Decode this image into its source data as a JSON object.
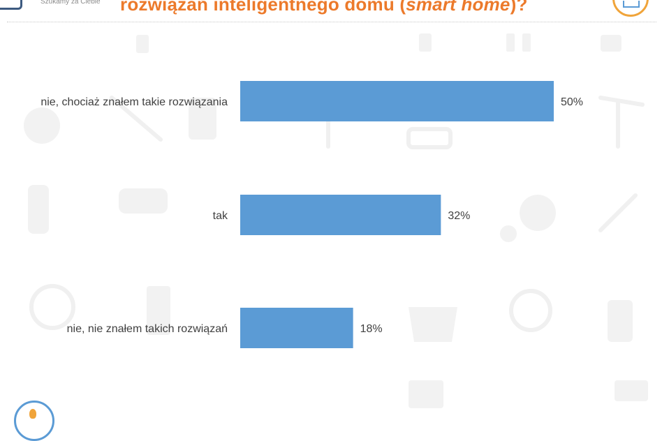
{
  "header": {
    "tagline": "Szukamy za Ciebie",
    "title_main": "rozwiązań inteligentnego domu (",
    "title_em": "smart home",
    "title_end": ")?"
  },
  "icons": {
    "logo": "logo-icon",
    "corner": "category-badge-icon",
    "footer": "flame-badge-icon",
    "watermark": "tools-pattern"
  },
  "colors": {
    "bar": "#5b9bd5",
    "title": "#ec7a2b",
    "label": "#404040"
  },
  "chart_data": {
    "type": "bar",
    "orientation": "horizontal",
    "categories": [
      "nie, chociaż znałem takie rozwiązania",
      "tak",
      "nie, nie znałem takich rozwiązań"
    ],
    "values": [
      50,
      32,
      18
    ],
    "value_labels": [
      "50%",
      "32%",
      "18%"
    ],
    "xlim": [
      0,
      50
    ],
    "grid": false
  }
}
